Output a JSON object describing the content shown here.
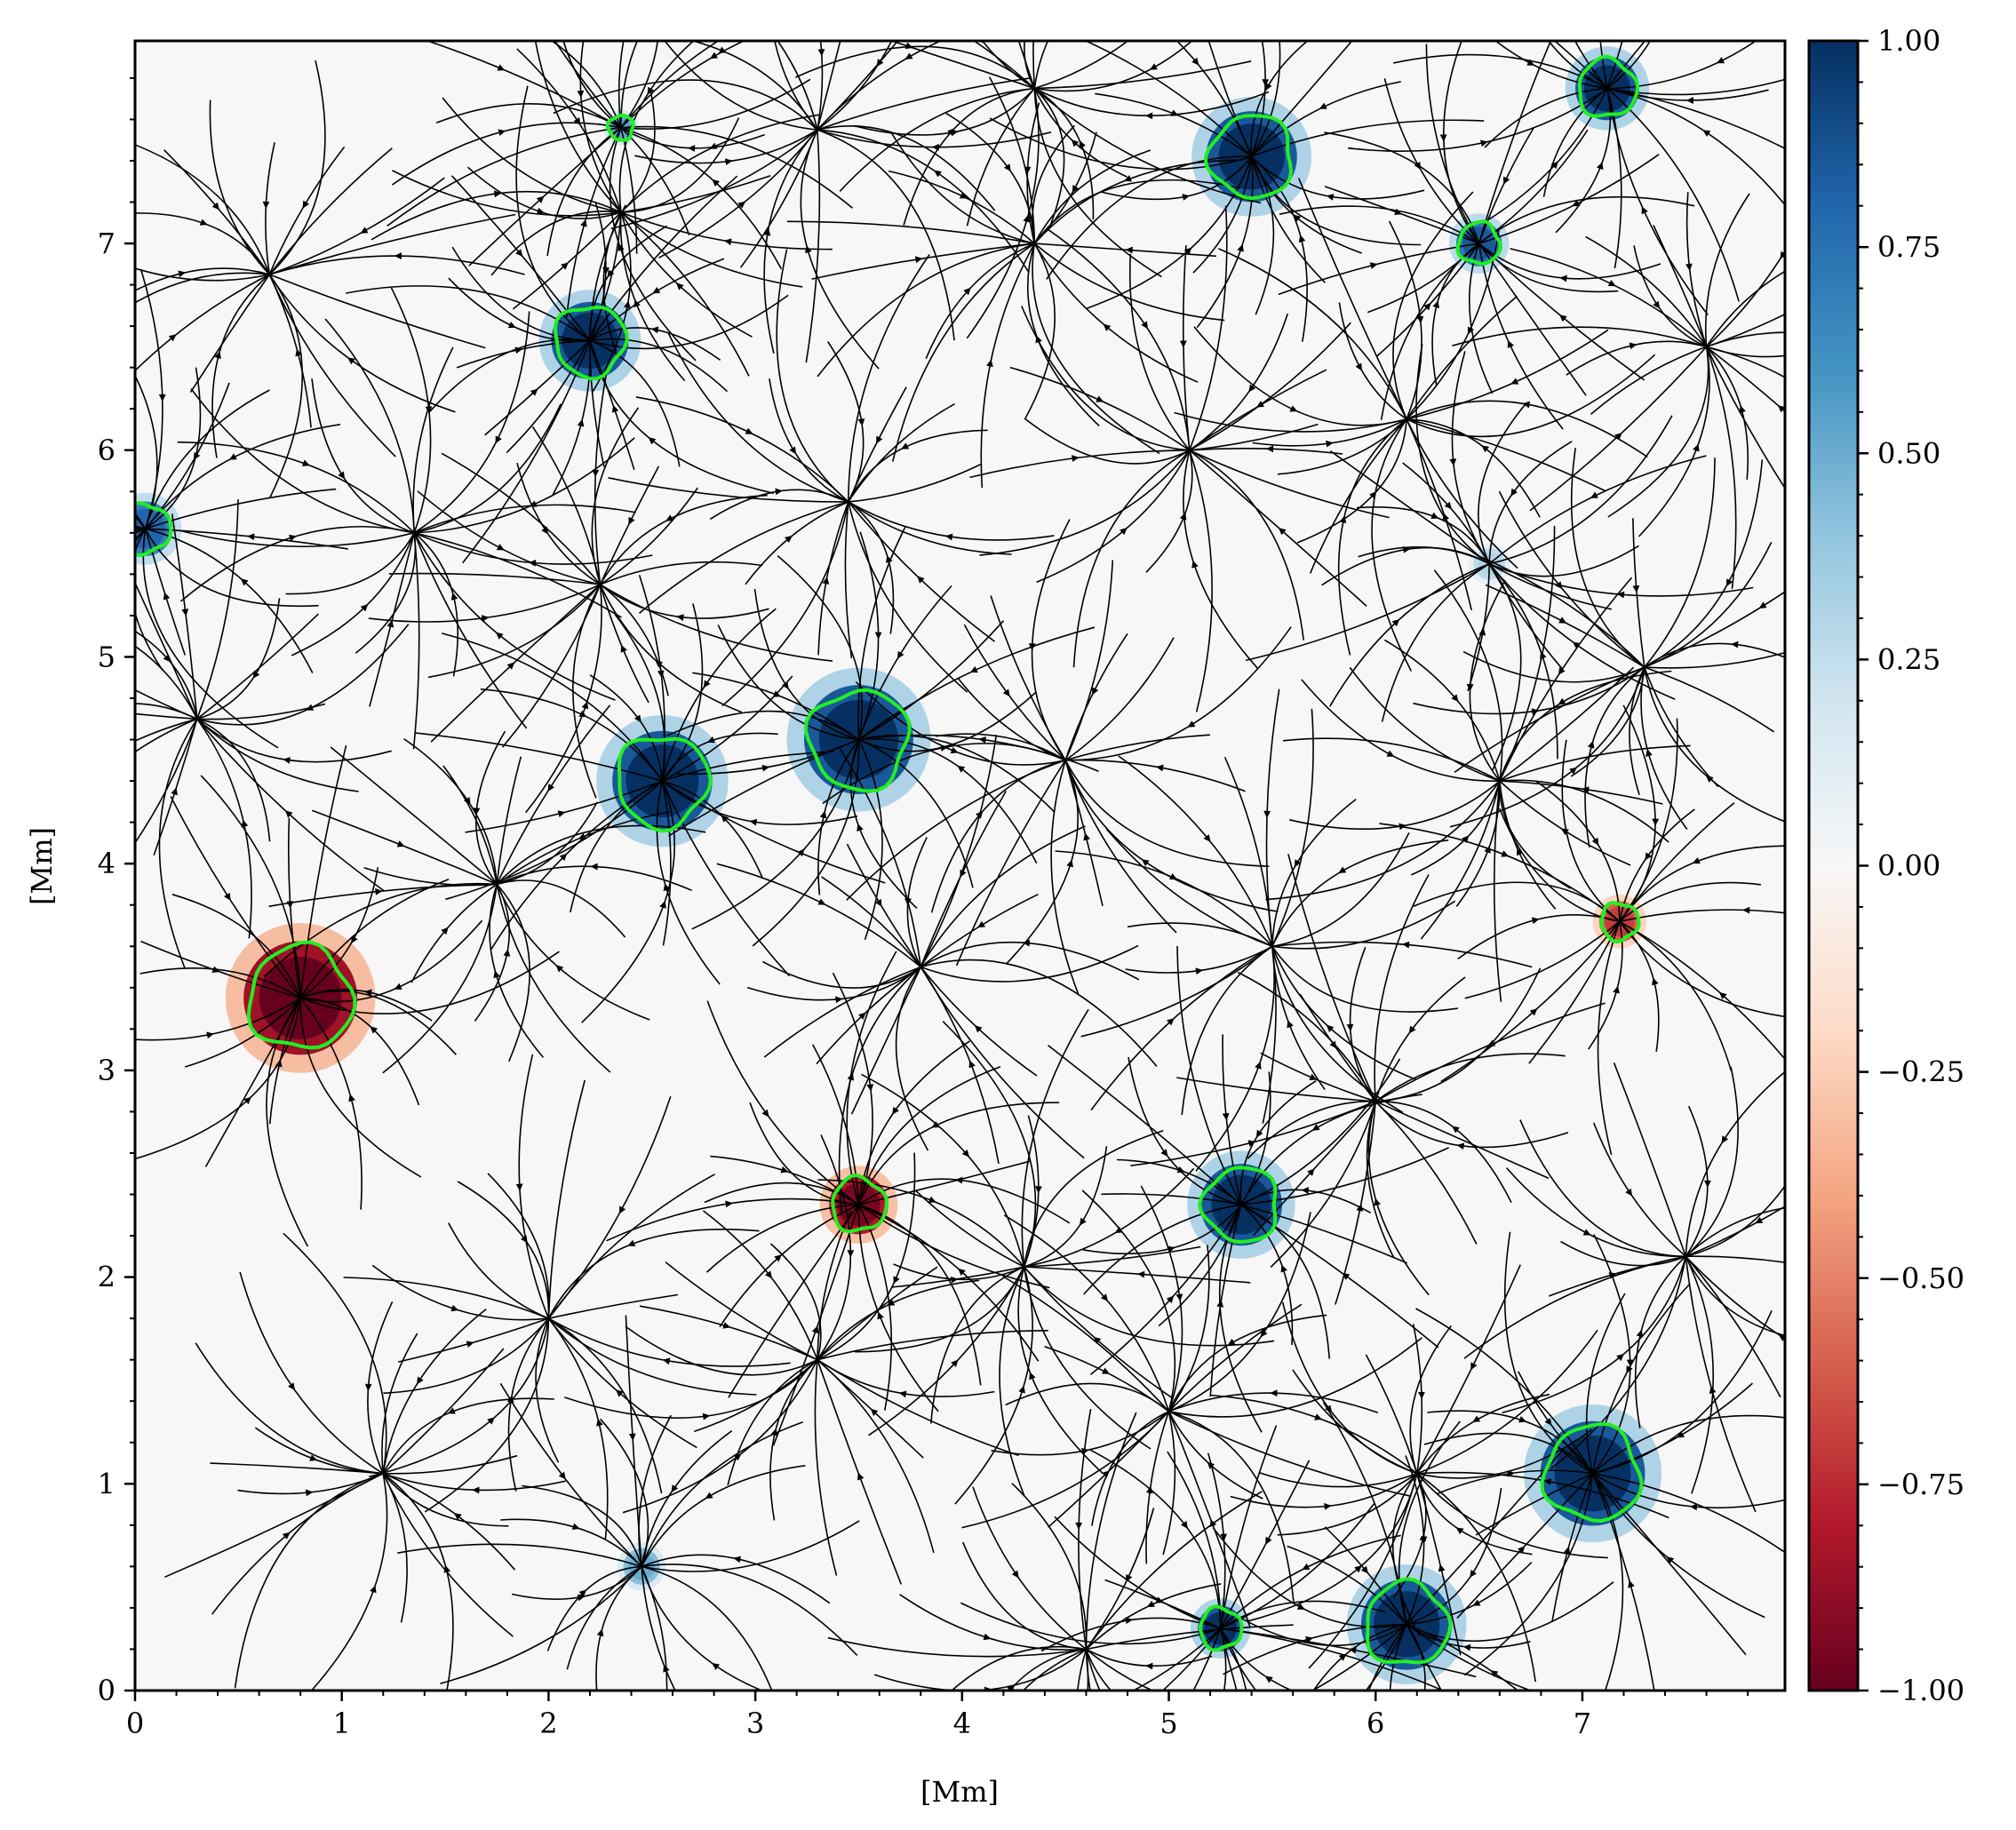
{
  "chart_data": {
    "type": "heatmap",
    "title": "",
    "xlabel": "[Mm]",
    "ylabel": "[Mm]",
    "xlim": [
      0,
      7.98
    ],
    "ylim": [
      0,
      7.98
    ],
    "x_ticks": [
      "0",
      "1",
      "2",
      "3",
      "4",
      "5",
      "6",
      "7"
    ],
    "y_ticks": [
      "0",
      "1",
      "2",
      "3",
      "4",
      "5",
      "6",
      "7"
    ],
    "colorbar": {
      "range": [
        -1.0,
        1.0
      ],
      "colormap": "RdBu",
      "tick_labels": [
        "1.00",
        "0.75",
        "0.50",
        "0.25",
        "0.00",
        "−0.25",
        "−0.50",
        "−0.75",
        "−1.00"
      ],
      "tick_values": [
        1.0,
        0.75,
        0.5,
        0.25,
        0.0,
        -0.25,
        -0.5,
        -0.75,
        -1.0
      ]
    },
    "contour_color": "#22ee22",
    "streamline_color": "#000000",
    "features": [
      {
        "x": 0.8,
        "y": 3.35,
        "r": 0.25,
        "value": -1.0
      },
      {
        "x": 3.5,
        "y": 2.35,
        "r": 0.13,
        "value": -0.95
      },
      {
        "x": 7.18,
        "y": 3.72,
        "r": 0.09,
        "value": -0.7
      },
      {
        "x": 2.2,
        "y": 6.53,
        "r": 0.17,
        "value": 1.0
      },
      {
        "x": 2.35,
        "y": 7.56,
        "r": 0.06,
        "value": 0.55
      },
      {
        "x": 5.4,
        "y": 7.42,
        "r": 0.2,
        "value": 1.0
      },
      {
        "x": 6.5,
        "y": 7.0,
        "r": 0.1,
        "value": 0.85
      },
      {
        "x": 7.12,
        "y": 7.75,
        "r": 0.14,
        "value": 1.0
      },
      {
        "x": 0.05,
        "y": 5.62,
        "r": 0.12,
        "value": 0.8
      },
      {
        "x": 2.55,
        "y": 4.4,
        "r": 0.22,
        "value": 1.0
      },
      {
        "x": 3.5,
        "y": 4.6,
        "r": 0.24,
        "value": 1.0
      },
      {
        "x": 5.35,
        "y": 2.35,
        "r": 0.18,
        "value": 1.0
      },
      {
        "x": 7.05,
        "y": 1.05,
        "r": 0.23,
        "value": 1.0
      },
      {
        "x": 6.15,
        "y": 0.32,
        "r": 0.2,
        "value": 1.0
      },
      {
        "x": 5.25,
        "y": 0.3,
        "r": 0.1,
        "value": 1.0
      },
      {
        "x": 2.45,
        "y": 0.6,
        "r": 0.08,
        "value": 0.5
      },
      {
        "x": 6.55,
        "y": 5.45,
        "r": 0.07,
        "value": 0.3
      }
    ],
    "streamline_nodes": [
      {
        "x": 0.65,
        "y": 6.85
      },
      {
        "x": 2.35,
        "y": 7.15
      },
      {
        "x": 3.3,
        "y": 7.55
      },
      {
        "x": 4.35,
        "y": 7.75
      },
      {
        "x": 4.35,
        "y": 7.0
      },
      {
        "x": 3.45,
        "y": 5.75
      },
      {
        "x": 1.35,
        "y": 5.6
      },
      {
        "x": 2.25,
        "y": 5.35
      },
      {
        "x": 5.1,
        "y": 6.0
      },
      {
        "x": 6.15,
        "y": 6.15
      },
      {
        "x": 7.6,
        "y": 6.5
      },
      {
        "x": 4.5,
        "y": 4.5
      },
      {
        "x": 6.6,
        "y": 4.4
      },
      {
        "x": 1.75,
        "y": 3.9
      },
      {
        "x": 3.8,
        "y": 3.5
      },
      {
        "x": 2.0,
        "y": 1.8
      },
      {
        "x": 4.3,
        "y": 2.05
      },
      {
        "x": 6.0,
        "y": 2.85
      },
      {
        "x": 7.5,
        "y": 2.1
      },
      {
        "x": 3.3,
        "y": 1.6
      },
      {
        "x": 5.0,
        "y": 1.35
      },
      {
        "x": 6.2,
        "y": 1.05
      },
      {
        "x": 1.2,
        "y": 1.05
      },
      {
        "x": 4.6,
        "y": 0.2
      },
      {
        "x": 5.5,
        "y": 3.6
      },
      {
        "x": 0.3,
        "y": 4.7
      },
      {
        "x": 7.3,
        "y": 4.95
      }
    ]
  }
}
